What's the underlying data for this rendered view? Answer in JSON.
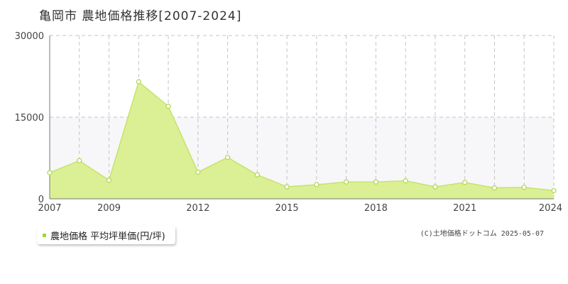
{
  "title": "亀岡市 農地価格推移[2007-2024]",
  "legend": {
    "label": "農地価格 平均坪単価(円/坪)"
  },
  "credit": "(C)土地価格ドットコム 2025-05-07",
  "colors": {
    "fill": "#d9ef8f",
    "line": "#c5e36a",
    "marker_stroke": "#b5d85a",
    "marker_fill": "#ffffff",
    "band": "#f7f6f9",
    "grid": "#c4c4c4",
    "axis": "#777777",
    "legend_swatch": "#a8d43c"
  },
  "chart_data": {
    "type": "area",
    "title": "亀岡市 農地価格推移[2007-2024]",
    "xlabel": "",
    "ylabel": "",
    "x": [
      2007,
      2008,
      2009,
      2010,
      2011,
      2012,
      2013,
      2014,
      2015,
      2016,
      2017,
      2018,
      2019,
      2020,
      2021,
      2022,
      2023,
      2024
    ],
    "series": [
      {
        "name": "農地価格 平均坪単価(円/坪)",
        "values": [
          4800,
          7000,
          3400,
          21500,
          17000,
          4900,
          7600,
          4400,
          2200,
          2600,
          3100,
          3100,
          3300,
          2200,
          3000,
          2000,
          2100,
          1500
        ]
      }
    ],
    "xlim": [
      2007,
      2024
    ],
    "ylim": [
      0,
      30000
    ],
    "x_tick_labels": [
      "2007",
      "2009",
      "2012",
      "2015",
      "2018",
      "2021",
      "2024"
    ],
    "y_tick_labels": [
      "30000",
      "15000",
      "0"
    ],
    "grid": true,
    "legend_position": "bottom-left"
  }
}
